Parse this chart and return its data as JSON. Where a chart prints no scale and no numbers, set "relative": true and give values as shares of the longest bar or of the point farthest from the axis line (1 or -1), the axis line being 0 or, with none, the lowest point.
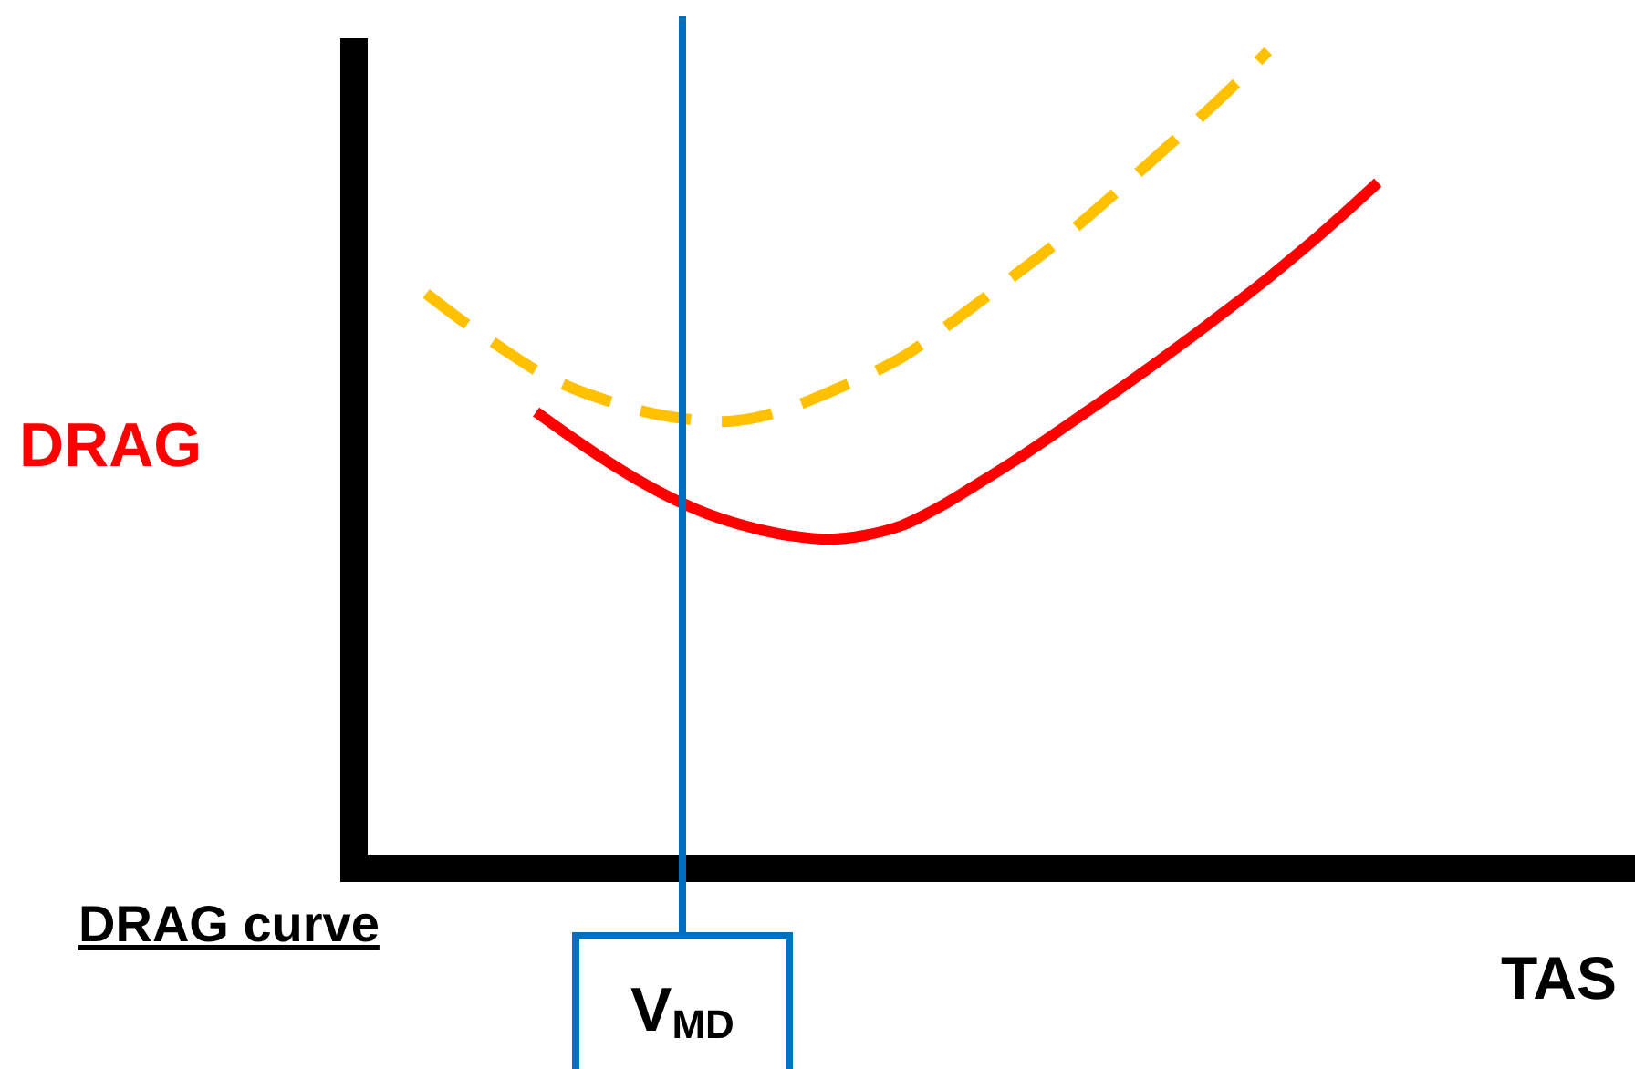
{
  "chart_data": {
    "type": "line",
    "title": "DRAG curve",
    "xlabel": "TAS",
    "ylabel": "DRAG",
    "relative": true,
    "categories": [
      null,
      null,
      null,
      null,
      null,
      null,
      null,
      null,
      null,
      null,
      null,
      null,
      null,
      null,
      null,
      null,
      null,
      null,
      null,
      null,
      null,
      null,
      null,
      null,
      null,
      null,
      null,
      null,
      null,
      null,
      null,
      null,
      null,
      null,
      null,
      null
    ],
    "series": [
      {
        "color": "#ffc000",
        "line_style": "dashed",
        "values": [
          null,
          null,
          0.703,
          0.669,
          0.638,
          0.609,
          0.587,
          0.571,
          0.558,
          0.55,
          0.546,
          0.551,
          0.564,
          0.582,
          0.602,
          0.625,
          0.656,
          0.689,
          0.723,
          0.757,
          0.794,
          0.833,
          0.873,
          0.913,
          0.955,
          1,
          null,
          null,
          null,
          null,
          null,
          null,
          null,
          null,
          null,
          null
        ]
      },
      {
        "color": "#ff0000",
        "line_style": "solid",
        "values": [
          null,
          null,
          null,
          null,
          null,
          0.558,
          0.526,
          0.496,
          0.469,
          0.446,
          0.428,
          0.415,
          0.406,
          0.402,
          0.407,
          0.419,
          0.441,
          0.468,
          0.496,
          0.526,
          0.557,
          0.588,
          0.62,
          0.653,
          0.687,
          0.722,
          0.759,
          0.798,
          0.839,
          null,
          null,
          null,
          null,
          null,
          null,
          null
        ]
      }
    ],
    "annotations": [
      "V$_{MD}$"
    ]
  }
}
